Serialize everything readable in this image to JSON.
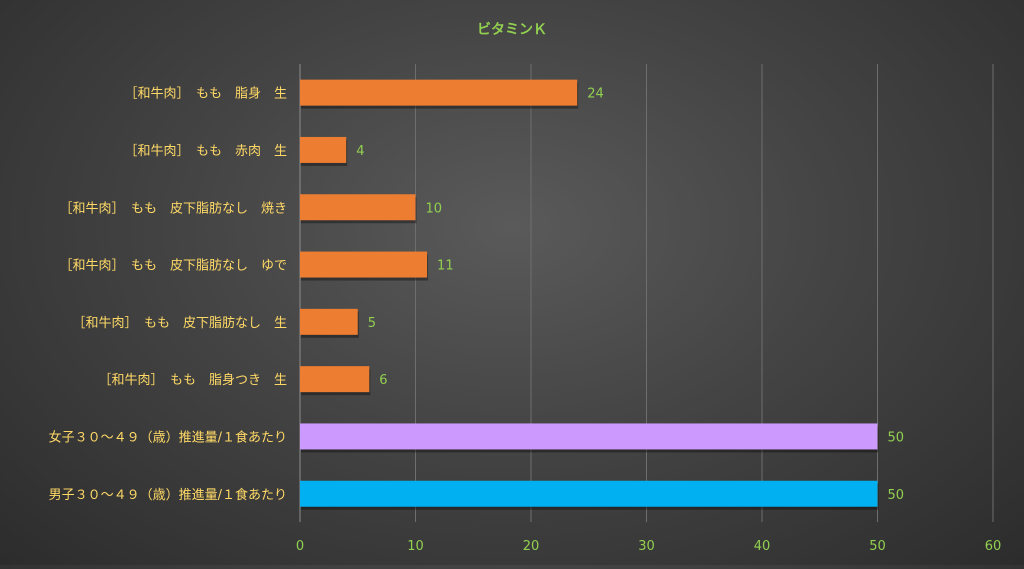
{
  "chart_data": {
    "type": "bar",
    "orientation": "horizontal",
    "title": "ビタミンＫ",
    "xlabel": "",
    "ylabel": "",
    "xlim": [
      0,
      60
    ],
    "x_ticks": [
      0,
      10,
      20,
      30,
      40,
      50,
      60
    ],
    "grid": true,
    "legend": "none",
    "categories": [
      "［和牛肉］　もも　脂身　生",
      "［和牛肉］　もも　赤肉　生",
      "［和牛肉］　もも　皮下脂肪なし　焼き",
      "［和牛肉］　もも　皮下脂肪なし　ゆで",
      "［和牛肉］　もも　皮下脂肪なし　生",
      "［和牛肉］　もも　脂身つき　生",
      "女子３０〜４９（歳）推進量/１食あたり",
      "男子３０〜４９（歳）推進量/１食あたり"
    ],
    "values": [
      24,
      4,
      10,
      11,
      5,
      6,
      50,
      50
    ],
    "bar_colors": [
      "#ED7D31",
      "#ED7D31",
      "#ED7D31",
      "#ED7D31",
      "#ED7D31",
      "#ED7D31",
      "#CC99FF",
      "#00B0F0"
    ]
  },
  "colors": {
    "title_text": "#92D050",
    "category_text": "#FFD966",
    "value_text": "#92D050",
    "tick_text": "#92D050",
    "grid": "#6E6E6E",
    "axis": "#8C8C8C"
  }
}
